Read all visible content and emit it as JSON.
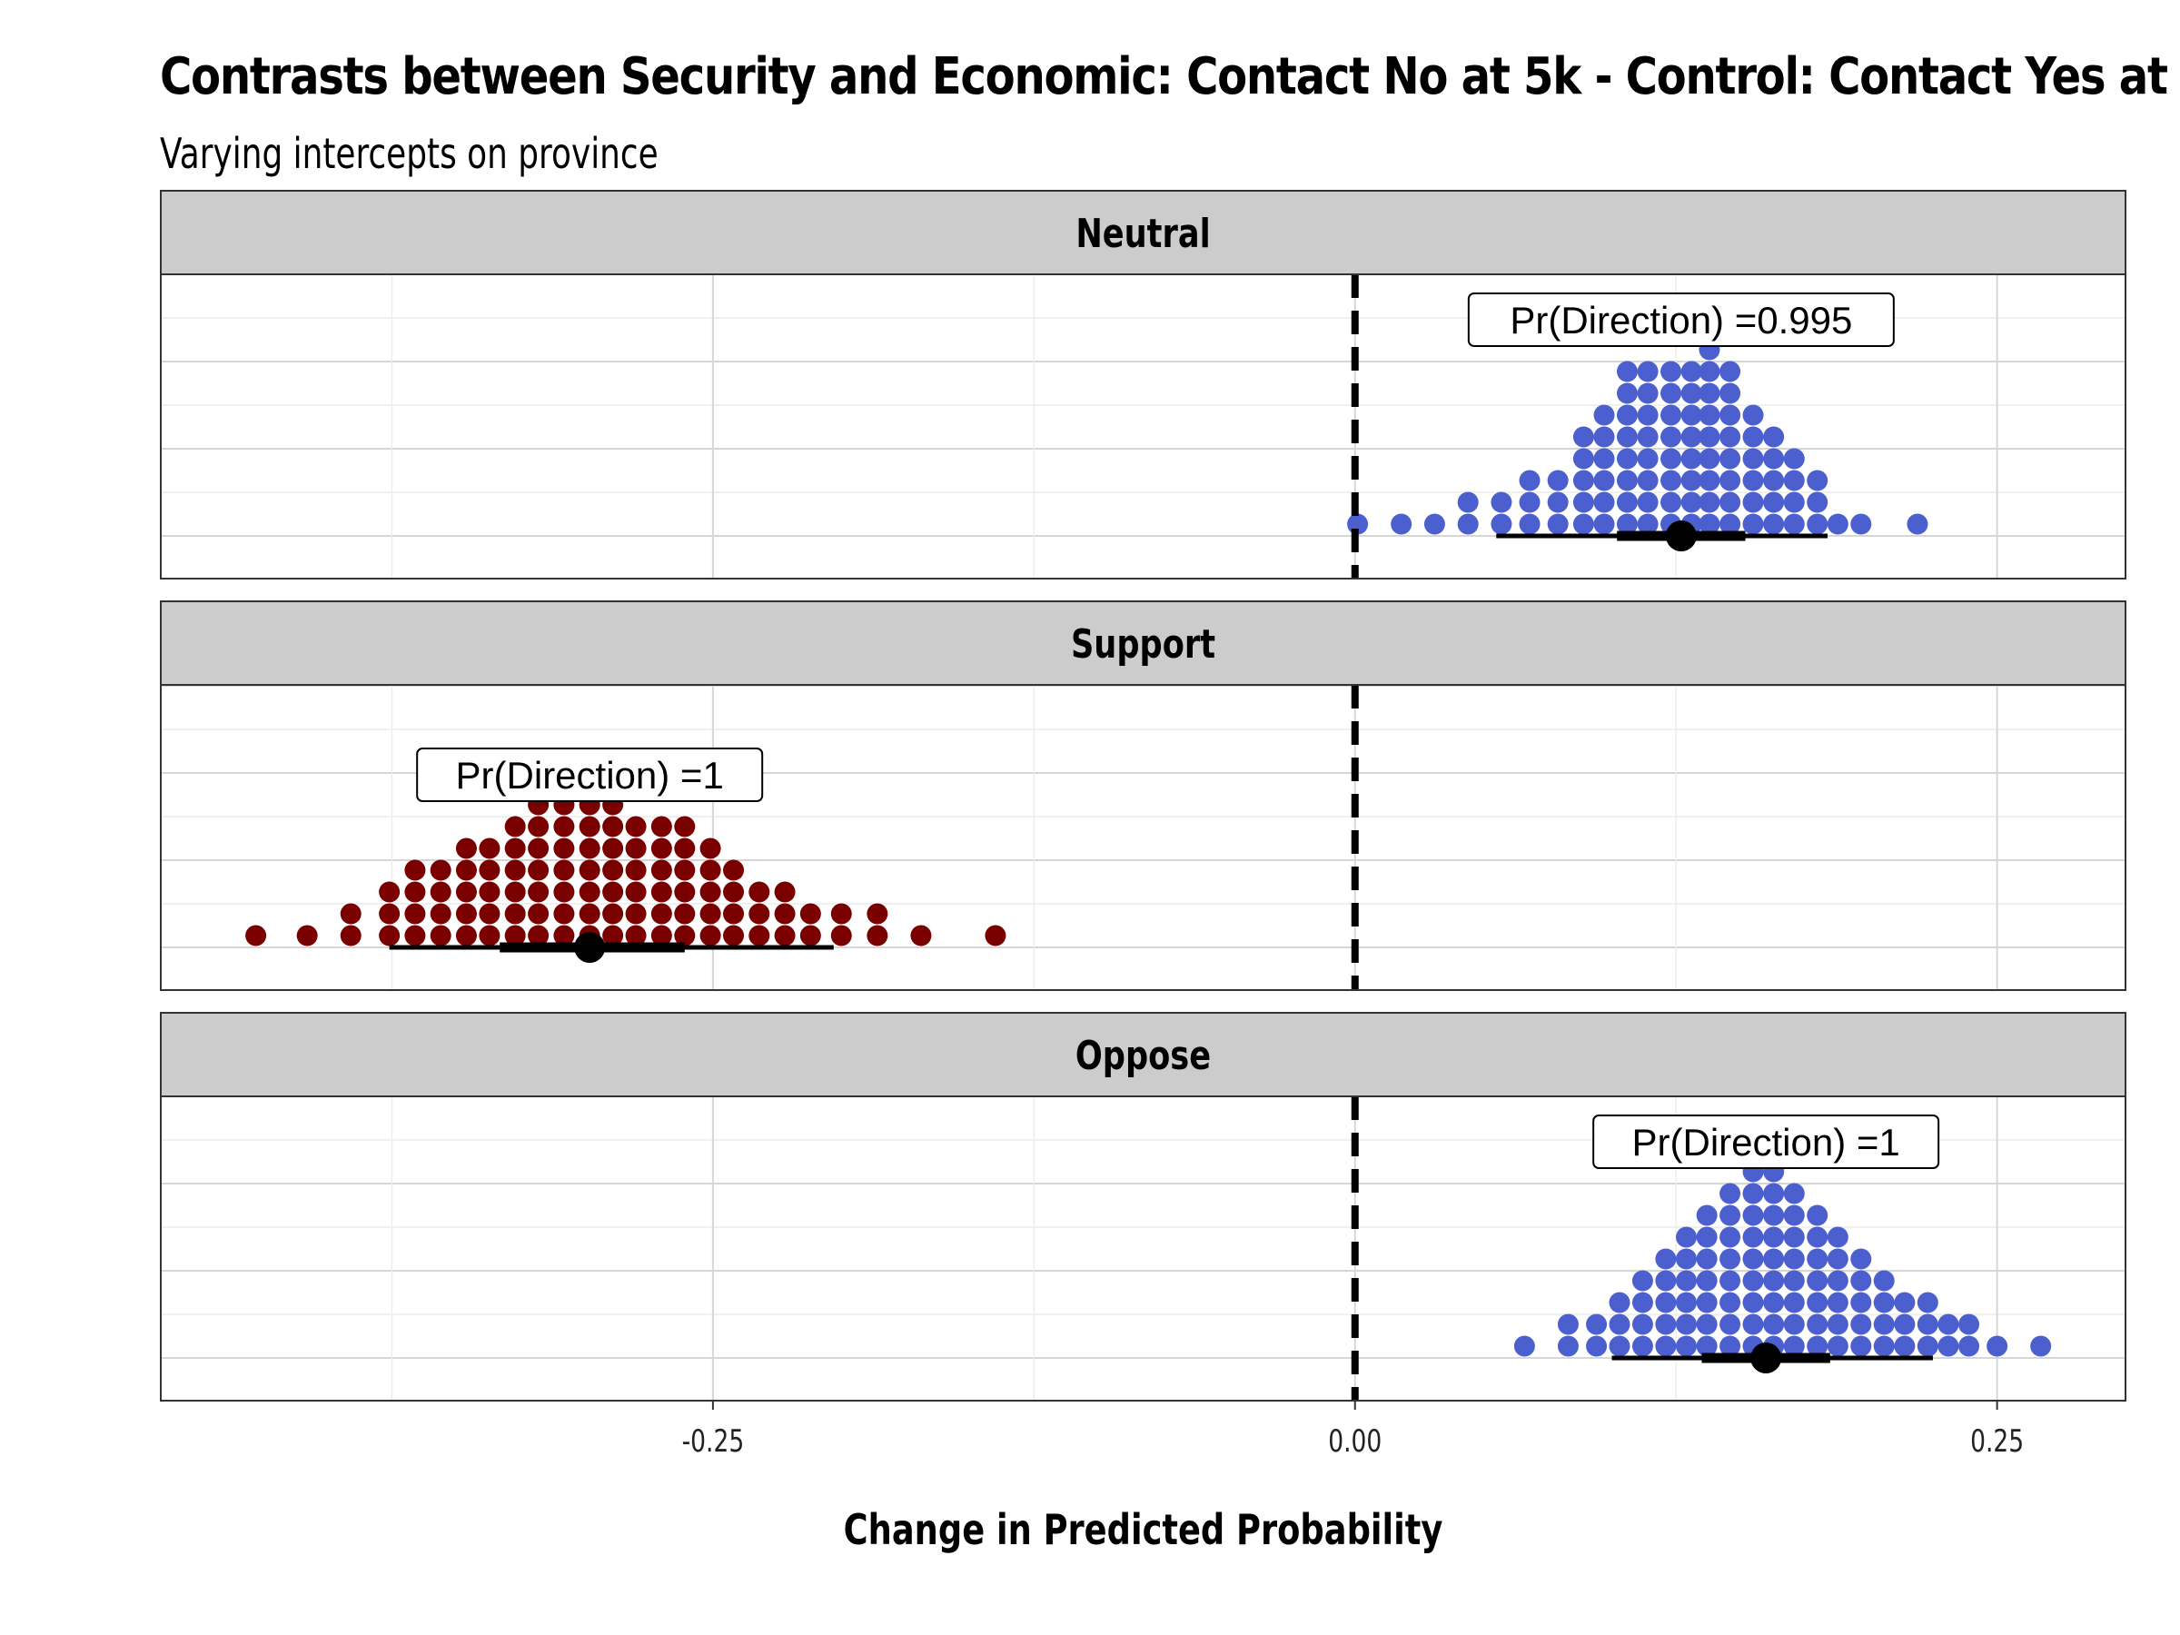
{
  "chart_data": {
    "type": "dotplot",
    "title": "Contrasts between Security and Economic: Contact No at 5k - Control: Contact Yes at",
    "subtitle": "Varying intercepts on province",
    "xlabel": "Change in Predicted Probability",
    "xlim": [
      -0.465,
      0.3
    ],
    "x_ticks": [
      -0.25,
      0.0,
      0.25
    ],
    "x_tick_labels": [
      "-0.25",
      "0.00",
      "0.25"
    ],
    "reference_line": 0.0,
    "grid": true,
    "panels": [
      {
        "label": "Neutral",
        "color": "#4b5fcf",
        "annotation": "Pr(Direction) =0.995",
        "point_estimate": 0.127,
        "interval_66": [
          0.102,
          0.152
        ],
        "interval_95": [
          0.055,
          0.184
        ],
        "dot_columns": [
          {
            "x": 0.001,
            "n": 1
          },
          {
            "x": 0.018,
            "n": 1
          },
          {
            "x": 0.031,
            "n": 1
          },
          {
            "x": 0.044,
            "n": 2
          },
          {
            "x": 0.057,
            "n": 2
          },
          {
            "x": 0.068,
            "n": 3
          },
          {
            "x": 0.079,
            "n": 3
          },
          {
            "x": 0.089,
            "n": 5
          },
          {
            "x": 0.097,
            "n": 6
          },
          {
            "x": 0.106,
            "n": 8
          },
          {
            "x": 0.114,
            "n": 8
          },
          {
            "x": 0.123,
            "n": 8
          },
          {
            "x": 0.131,
            "n": 8
          },
          {
            "x": 0.138,
            "n": 9
          },
          {
            "x": 0.146,
            "n": 8
          },
          {
            "x": 0.155,
            "n": 6
          },
          {
            "x": 0.163,
            "n": 5
          },
          {
            "x": 0.171,
            "n": 4
          },
          {
            "x": 0.18,
            "n": 3
          },
          {
            "x": 0.188,
            "n": 1
          },
          {
            "x": 0.197,
            "n": 1
          },
          {
            "x": 0.219,
            "n": 1
          }
        ]
      },
      {
        "label": "Support",
        "color": "#7a0000",
        "annotation": "Pr(Direction) =1",
        "point_estimate": -0.298,
        "interval_66": [
          -0.333,
          -0.261
        ],
        "interval_95": [
          -0.376,
          -0.203
        ],
        "dot_columns": [
          {
            "x": -0.428,
            "n": 1
          },
          {
            "x": -0.408,
            "n": 1
          },
          {
            "x": -0.391,
            "n": 2
          },
          {
            "x": -0.376,
            "n": 3
          },
          {
            "x": -0.366,
            "n": 4
          },
          {
            "x": -0.356,
            "n": 4
          },
          {
            "x": -0.346,
            "n": 5
          },
          {
            "x": -0.337,
            "n": 5
          },
          {
            "x": -0.327,
            "n": 6
          },
          {
            "x": -0.318,
            "n": 7
          },
          {
            "x": -0.308,
            "n": 7
          },
          {
            "x": -0.298,
            "n": 7
          },
          {
            "x": -0.289,
            "n": 7
          },
          {
            "x": -0.28,
            "n": 6
          },
          {
            "x": -0.27,
            "n": 6
          },
          {
            "x": -0.261,
            "n": 6
          },
          {
            "x": -0.251,
            "n": 5
          },
          {
            "x": -0.242,
            "n": 4
          },
          {
            "x": -0.232,
            "n": 3
          },
          {
            "x": -0.222,
            "n": 3
          },
          {
            "x": -0.212,
            "n": 2
          },
          {
            "x": -0.2,
            "n": 2
          },
          {
            "x": -0.186,
            "n": 2
          },
          {
            "x": -0.169,
            "n": 1
          },
          {
            "x": -0.14,
            "n": 1
          }
        ]
      },
      {
        "label": "Oppose",
        "color": "#4b5fcf",
        "annotation": "Pr(Direction) =1",
        "point_estimate": 0.16,
        "interval_66": [
          0.135,
          0.185
        ],
        "interval_95": [
          0.1,
          0.225
        ],
        "dot_columns": [
          {
            "x": 0.066,
            "n": 1
          },
          {
            "x": 0.083,
            "n": 2
          },
          {
            "x": 0.094,
            "n": 2
          },
          {
            "x": 0.103,
            "n": 3
          },
          {
            "x": 0.112,
            "n": 4
          },
          {
            "x": 0.121,
            "n": 5
          },
          {
            "x": 0.129,
            "n": 6
          },
          {
            "x": 0.137,
            "n": 7
          },
          {
            "x": 0.146,
            "n": 8
          },
          {
            "x": 0.155,
            "n": 9
          },
          {
            "x": 0.163,
            "n": 9
          },
          {
            "x": 0.171,
            "n": 8
          },
          {
            "x": 0.18,
            "n": 7
          },
          {
            "x": 0.188,
            "n": 6
          },
          {
            "x": 0.197,
            "n": 5
          },
          {
            "x": 0.206,
            "n": 4
          },
          {
            "x": 0.214,
            "n": 3
          },
          {
            "x": 0.223,
            "n": 3
          },
          {
            "x": 0.231,
            "n": 2
          },
          {
            "x": 0.239,
            "n": 2
          },
          {
            "x": 0.25,
            "n": 1
          },
          {
            "x": 0.267,
            "n": 1
          }
        ]
      }
    ]
  }
}
